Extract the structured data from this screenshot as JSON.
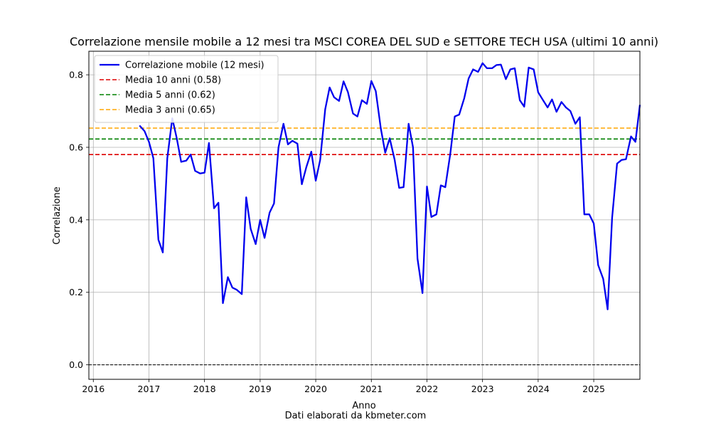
{
  "chart_data": {
    "type": "line",
    "title": "Correlazione mensile mobile a 12 mesi tra MSCI COREA DEL SUD e SETTORE TECH USA (ultimi 10 anni)",
    "xlabel": "Anno",
    "ylabel": "Correlazione",
    "footer": "Dati elaborati da kbmeter.com",
    "xlim": [
      2015.92,
      2025.83
    ],
    "ylim": [
      -0.04,
      0.865
    ],
    "x_ticks": [
      2016,
      2017,
      2018,
      2019,
      2020,
      2021,
      2022,
      2023,
      2024,
      2025
    ],
    "x_tick_labels": [
      "2016",
      "2017",
      "2018",
      "2019",
      "2020",
      "2021",
      "2022",
      "2023",
      "2024",
      "2025"
    ],
    "y_ticks": [
      0.0,
      0.2,
      0.4,
      0.6,
      0.8
    ],
    "y_tick_labels": [
      "0.0",
      "0.2",
      "0.4",
      "0.6",
      "0.8"
    ],
    "grid": true,
    "legend_position": "top-left",
    "zero_line": {
      "value": 0.0,
      "color": "#000000"
    },
    "reference_lines": [
      {
        "name": "Media 10 anni (0.58)",
        "value": 0.58,
        "color": "#dd0000"
      },
      {
        "name": "Media 5 anni (0.62)",
        "value": 0.623,
        "color": "#008000"
      },
      {
        "name": "Media 3 anni (0.65)",
        "value": 0.653,
        "color": "#ffa500"
      }
    ],
    "series": [
      {
        "name": "Correlazione mobile (12 mesi)",
        "color": "#0000ee",
        "x": [
          2016.83,
          2016.92,
          2017.0,
          2017.08,
          2017.17,
          2017.25,
          2017.33,
          2017.42,
          2017.5,
          2017.58,
          2017.67,
          2017.75,
          2017.83,
          2017.92,
          2018.0,
          2018.08,
          2018.17,
          2018.25,
          2018.33,
          2018.42,
          2018.5,
          2018.58,
          2018.67,
          2018.75,
          2018.83,
          2018.92,
          2019.0,
          2019.08,
          2019.17,
          2019.25,
          2019.33,
          2019.42,
          2019.5,
          2019.58,
          2019.67,
          2019.75,
          2019.83,
          2019.92,
          2020.0,
          2020.08,
          2020.17,
          2020.25,
          2020.33,
          2020.42,
          2020.5,
          2020.58,
          2020.67,
          2020.75,
          2020.83,
          2020.92,
          2021.0,
          2021.08,
          2021.17,
          2021.25,
          2021.33,
          2021.42,
          2021.5,
          2021.58,
          2021.67,
          2021.75,
          2021.83,
          2021.92,
          2022.0,
          2022.08,
          2022.17,
          2022.25,
          2022.33,
          2022.42,
          2022.5,
          2022.58,
          2022.67,
          2022.75,
          2022.83,
          2022.92,
          2023.0,
          2023.08,
          2023.17,
          2023.25,
          2023.33,
          2023.42,
          2023.5,
          2023.58,
          2023.67,
          2023.75,
          2023.83,
          2023.92,
          2024.0,
          2024.08,
          2024.17,
          2024.25,
          2024.33,
          2024.42,
          2024.5,
          2024.58,
          2024.67,
          2024.75,
          2024.83,
          2024.92,
          2025.0,
          2025.08,
          2025.17,
          2025.25,
          2025.33,
          2025.42,
          2025.5,
          2025.58,
          2025.67,
          2025.75,
          2025.83
        ],
        "values": [
          0.66,
          0.645,
          0.615,
          0.57,
          0.345,
          0.31,
          0.57,
          0.68,
          0.625,
          0.56,
          0.563,
          0.58,
          0.535,
          0.528,
          0.53,
          0.612,
          0.432,
          0.447,
          0.17,
          0.242,
          0.213,
          0.207,
          0.195,
          0.462,
          0.375,
          0.333,
          0.4,
          0.35,
          0.42,
          0.445,
          0.6,
          0.665,
          0.608,
          0.618,
          0.61,
          0.498,
          0.545,
          0.588,
          0.508,
          0.565,
          0.705,
          0.765,
          0.738,
          0.728,
          0.782,
          0.752,
          0.693,
          0.685,
          0.73,
          0.72,
          0.783,
          0.755,
          0.652,
          0.585,
          0.625,
          0.565,
          0.488,
          0.49,
          0.665,
          0.6,
          0.293,
          0.198,
          0.492,
          0.408,
          0.415,
          0.495,
          0.49,
          0.582,
          0.685,
          0.69,
          0.735,
          0.79,
          0.815,
          0.808,
          0.832,
          0.818,
          0.818,
          0.827,
          0.828,
          0.788,
          0.815,
          0.818,
          0.73,
          0.712,
          0.82,
          0.815,
          0.752,
          0.732,
          0.71,
          0.732,
          0.698,
          0.725,
          0.71,
          0.7,
          0.665,
          0.683,
          0.415,
          0.415,
          0.39,
          0.275,
          0.237,
          0.153,
          0.405,
          0.555,
          0.565,
          0.567,
          0.63,
          0.615,
          0.717
        ]
      }
    ]
  }
}
